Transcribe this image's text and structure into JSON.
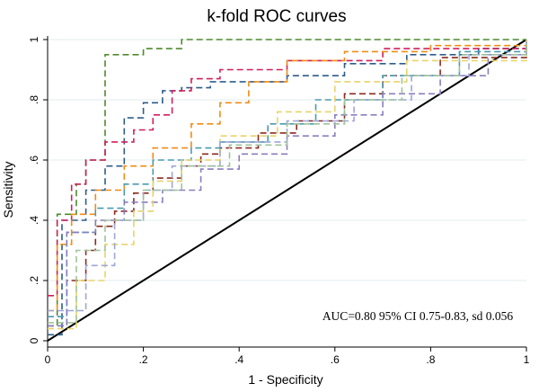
{
  "chart_data": {
    "type": "line",
    "title": "k-fold ROC curves",
    "xlabel": "1 - Specificity",
    "ylabel": "Sensitivity",
    "xlim": [
      0,
      1
    ],
    "ylim": [
      0,
      1
    ],
    "x_ticks": [
      0,
      0.2,
      0.4,
      0.6,
      0.8,
      1
    ],
    "x_tick_labels": [
      "0",
      ".2",
      ".4",
      ".6",
      ".8",
      "1"
    ],
    "y_ticks": [
      0,
      0.2,
      0.4,
      0.6,
      0.8,
      1
    ],
    "y_tick_labels": [
      "0",
      ".2",
      ".4",
      ".6",
      ".8",
      "1"
    ],
    "grid": "horizontal",
    "annotation": "AUC=0.80 95% CI 0.75-0.83, sd 0.056",
    "reference_line": {
      "x": [
        0,
        1
      ],
      "y": [
        0,
        1
      ],
      "color": "#000000"
    },
    "series": [
      {
        "color": "#4f8a2e",
        "x": [
          0,
          0.02,
          0.06,
          0.08,
          0.1,
          0.12,
          0.12,
          0.15,
          0.2,
          0.28,
          1
        ],
        "y": [
          0.05,
          0.42,
          0.52,
          0.6,
          0.6,
          0.84,
          0.95,
          0.95,
          0.97,
          1,
          1
        ]
      },
      {
        "color": "#2e5c8a",
        "x": [
          0,
          0.03,
          0.08,
          0.12,
          0.16,
          0.2,
          0.24,
          0.28,
          0.34,
          0.4,
          0.5,
          0.62,
          0.75,
          0.9,
          1
        ],
        "y": [
          0.02,
          0.4,
          0.5,
          0.58,
          0.74,
          0.79,
          0.83,
          0.84,
          0.86,
          0.86,
          0.88,
          0.92,
          0.95,
          0.97,
          1
        ]
      },
      {
        "color": "#d01f5c",
        "x": [
          0,
          0.02,
          0.05,
          0.08,
          0.12,
          0.18,
          0.22,
          0.26,
          0.3,
          0.36,
          0.5,
          0.7,
          1
        ],
        "y": [
          0.15,
          0.4,
          0.52,
          0.6,
          0.66,
          0.7,
          0.75,
          0.83,
          0.87,
          0.9,
          0.93,
          0.97,
          1
        ]
      },
      {
        "color": "#f08c14",
        "x": [
          0,
          0.02,
          0.05,
          0.1,
          0.16,
          0.22,
          0.3,
          0.36,
          0.42,
          0.5,
          0.62,
          0.8,
          1
        ],
        "y": [
          0.1,
          0.32,
          0.42,
          0.5,
          0.58,
          0.64,
          0.72,
          0.79,
          0.86,
          0.93,
          0.96,
          0.98,
          1
        ]
      },
      {
        "color": "#8c2a1e",
        "x": [
          0,
          0.04,
          0.08,
          0.1,
          0.14,
          0.18,
          0.22,
          0.28,
          0.32,
          0.36,
          0.44,
          0.52,
          0.6,
          0.62,
          0.7,
          0.82,
          1
        ],
        "y": [
          0.05,
          0.2,
          0.3,
          0.38,
          0.43,
          0.49,
          0.54,
          0.58,
          0.62,
          0.64,
          0.69,
          0.73,
          0.73,
          0.82,
          0.88,
          0.94,
          1
        ]
      },
      {
        "color": "#4a9ab0",
        "x": [
          0,
          0.04,
          0.1,
          0.16,
          0.22,
          0.3,
          0.36,
          0.46,
          0.56,
          0.7,
          0.86,
          1
        ],
        "y": [
          0.08,
          0.36,
          0.44,
          0.52,
          0.6,
          0.64,
          0.66,
          0.72,
          0.8,
          0.88,
          0.96,
          1
        ]
      },
      {
        "color": "#8a7ec0",
        "x": [
          0,
          0.04,
          0.1,
          0.16,
          0.24,
          0.32,
          0.4,
          0.5,
          0.6,
          0.7,
          0.82,
          0.92,
          1
        ],
        "y": [
          0.05,
          0.36,
          0.4,
          0.46,
          0.5,
          0.57,
          0.62,
          0.68,
          0.75,
          0.82,
          0.88,
          0.95,
          1
        ]
      },
      {
        "color": "#e8d36a",
        "x": [
          0,
          0.06,
          0.12,
          0.18,
          0.22,
          0.28,
          0.36,
          0.48,
          0.6,
          0.75,
          1
        ],
        "y": [
          0.04,
          0.2,
          0.32,
          0.43,
          0.53,
          0.6,
          0.68,
          0.76,
          0.86,
          0.93,
          1
        ]
      },
      {
        "color": "#9ea6d8",
        "x": [
          0,
          0.08,
          0.14,
          0.2,
          0.26,
          0.36,
          0.5,
          0.64,
          0.76,
          0.88,
          1
        ],
        "y": [
          0.1,
          0.25,
          0.4,
          0.5,
          0.58,
          0.66,
          0.73,
          0.8,
          0.88,
          0.95,
          1
        ]
      },
      {
        "color": "#9ec39a",
        "x": [
          0,
          0.06,
          0.12,
          0.2,
          0.28,
          0.38,
          0.5,
          0.62,
          0.74,
          0.86,
          1
        ],
        "y": [
          0.06,
          0.3,
          0.4,
          0.5,
          0.58,
          0.65,
          0.72,
          0.8,
          0.88,
          0.95,
          1
        ]
      }
    ]
  }
}
